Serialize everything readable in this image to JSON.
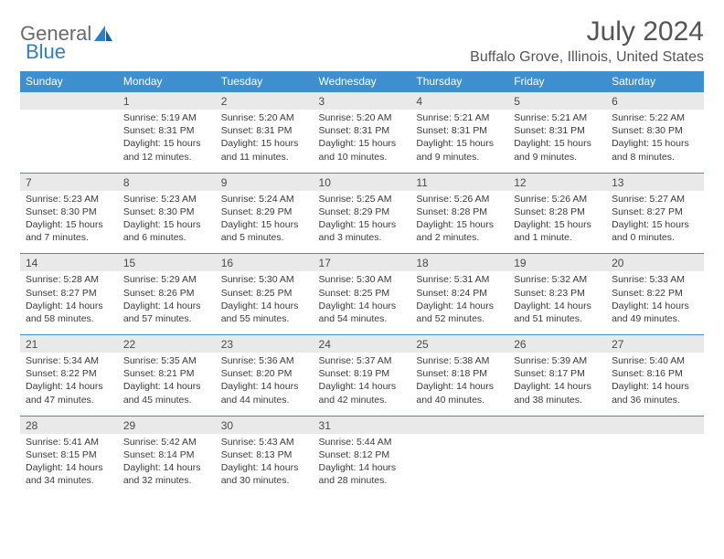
{
  "logo": {
    "text1": "General",
    "text2": "Blue"
  },
  "month_title": "July 2024",
  "location": "Buffalo Grove, Illinois, United States",
  "header_bg": "#3d8fcf",
  "header_text": "#ffffff",
  "daynum_bg": "#e9e9e9",
  "border_color": "#3d8fcf",
  "day_headers": [
    "Sunday",
    "Monday",
    "Tuesday",
    "Wednesday",
    "Thursday",
    "Friday",
    "Saturday"
  ],
  "weeks": [
    {
      "nums": [
        "",
        "1",
        "2",
        "3",
        "4",
        "5",
        "6"
      ],
      "sunrise": [
        "",
        "Sunrise: 5:19 AM",
        "Sunrise: 5:20 AM",
        "Sunrise: 5:20 AM",
        "Sunrise: 5:21 AM",
        "Sunrise: 5:21 AM",
        "Sunrise: 5:22 AM"
      ],
      "sunset": [
        "",
        "Sunset: 8:31 PM",
        "Sunset: 8:31 PM",
        "Sunset: 8:31 PM",
        "Sunset: 8:31 PM",
        "Sunset: 8:31 PM",
        "Sunset: 8:30 PM"
      ],
      "day1": [
        "",
        "Daylight: 15 hours",
        "Daylight: 15 hours",
        "Daylight: 15 hours",
        "Daylight: 15 hours",
        "Daylight: 15 hours",
        "Daylight: 15 hours"
      ],
      "day2": [
        "",
        "and 12 minutes.",
        "and 11 minutes.",
        "and 10 minutes.",
        "and 9 minutes.",
        "and 9 minutes.",
        "and 8 minutes."
      ]
    },
    {
      "nums": [
        "7",
        "8",
        "9",
        "10",
        "11",
        "12",
        "13"
      ],
      "sunrise": [
        "Sunrise: 5:23 AM",
        "Sunrise: 5:23 AM",
        "Sunrise: 5:24 AM",
        "Sunrise: 5:25 AM",
        "Sunrise: 5:26 AM",
        "Sunrise: 5:26 AM",
        "Sunrise: 5:27 AM"
      ],
      "sunset": [
        "Sunset: 8:30 PM",
        "Sunset: 8:30 PM",
        "Sunset: 8:29 PM",
        "Sunset: 8:29 PM",
        "Sunset: 8:28 PM",
        "Sunset: 8:28 PM",
        "Sunset: 8:27 PM"
      ],
      "day1": [
        "Daylight: 15 hours",
        "Daylight: 15 hours",
        "Daylight: 15 hours",
        "Daylight: 15 hours",
        "Daylight: 15 hours",
        "Daylight: 15 hours",
        "Daylight: 15 hours"
      ],
      "day2": [
        "and 7 minutes.",
        "and 6 minutes.",
        "and 5 minutes.",
        "and 3 minutes.",
        "and 2 minutes.",
        "and 1 minute.",
        "and 0 minutes."
      ]
    },
    {
      "nums": [
        "14",
        "15",
        "16",
        "17",
        "18",
        "19",
        "20"
      ],
      "sunrise": [
        "Sunrise: 5:28 AM",
        "Sunrise: 5:29 AM",
        "Sunrise: 5:30 AM",
        "Sunrise: 5:30 AM",
        "Sunrise: 5:31 AM",
        "Sunrise: 5:32 AM",
        "Sunrise: 5:33 AM"
      ],
      "sunset": [
        "Sunset: 8:27 PM",
        "Sunset: 8:26 PM",
        "Sunset: 8:25 PM",
        "Sunset: 8:25 PM",
        "Sunset: 8:24 PM",
        "Sunset: 8:23 PM",
        "Sunset: 8:22 PM"
      ],
      "day1": [
        "Daylight: 14 hours",
        "Daylight: 14 hours",
        "Daylight: 14 hours",
        "Daylight: 14 hours",
        "Daylight: 14 hours",
        "Daylight: 14 hours",
        "Daylight: 14 hours"
      ],
      "day2": [
        "and 58 minutes.",
        "and 57 minutes.",
        "and 55 minutes.",
        "and 54 minutes.",
        "and 52 minutes.",
        "and 51 minutes.",
        "and 49 minutes."
      ]
    },
    {
      "nums": [
        "21",
        "22",
        "23",
        "24",
        "25",
        "26",
        "27"
      ],
      "sunrise": [
        "Sunrise: 5:34 AM",
        "Sunrise: 5:35 AM",
        "Sunrise: 5:36 AM",
        "Sunrise: 5:37 AM",
        "Sunrise: 5:38 AM",
        "Sunrise: 5:39 AM",
        "Sunrise: 5:40 AM"
      ],
      "sunset": [
        "Sunset: 8:22 PM",
        "Sunset: 8:21 PM",
        "Sunset: 8:20 PM",
        "Sunset: 8:19 PM",
        "Sunset: 8:18 PM",
        "Sunset: 8:17 PM",
        "Sunset: 8:16 PM"
      ],
      "day1": [
        "Daylight: 14 hours",
        "Daylight: 14 hours",
        "Daylight: 14 hours",
        "Daylight: 14 hours",
        "Daylight: 14 hours",
        "Daylight: 14 hours",
        "Daylight: 14 hours"
      ],
      "day2": [
        "and 47 minutes.",
        "and 45 minutes.",
        "and 44 minutes.",
        "and 42 minutes.",
        "and 40 minutes.",
        "and 38 minutes.",
        "and 36 minutes."
      ]
    },
    {
      "nums": [
        "28",
        "29",
        "30",
        "31",
        "",
        "",
        ""
      ],
      "sunrise": [
        "Sunrise: 5:41 AM",
        "Sunrise: 5:42 AM",
        "Sunrise: 5:43 AM",
        "Sunrise: 5:44 AM",
        "",
        "",
        ""
      ],
      "sunset": [
        "Sunset: 8:15 PM",
        "Sunset: 8:14 PM",
        "Sunset: 8:13 PM",
        "Sunset: 8:12 PM",
        "",
        "",
        ""
      ],
      "day1": [
        "Daylight: 14 hours",
        "Daylight: 14 hours",
        "Daylight: 14 hours",
        "Daylight: 14 hours",
        "",
        "",
        ""
      ],
      "day2": [
        "and 34 minutes.",
        "and 32 minutes.",
        "and 30 minutes.",
        "and 28 minutes.",
        "",
        "",
        ""
      ]
    }
  ]
}
